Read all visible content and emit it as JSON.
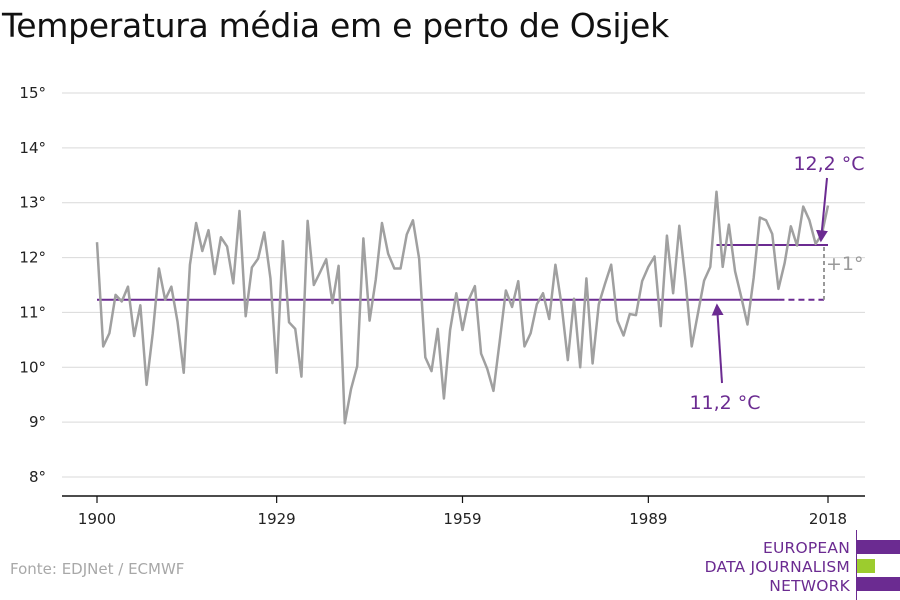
{
  "title": "Temperatura média em e perto de Osijek",
  "source": "Fonte: EDJNet / ECMWF",
  "logo": {
    "lines": [
      "EUROPEAN",
      "DATA JOURNALISM",
      "NETWORK"
    ],
    "colors": {
      "purple": "#6b2b91",
      "green": "#9ccc2e"
    }
  },
  "colors": {
    "series": "#a0a0a0",
    "average": "#6b2b91",
    "grid": "#d9d9d9",
    "axis": "#111111"
  },
  "chart_data": {
    "type": "line",
    "title": "Temperatura média em e perto de Osijek",
    "xlabel": "",
    "ylabel": "",
    "ylim": [
      8,
      15
    ],
    "xlim": [
      1900,
      2018
    ],
    "x_ticks": [
      1900,
      1929,
      1959,
      1989,
      2018
    ],
    "x_tick_labels": [
      "1900",
      "1929",
      "1959",
      "1989",
      "2018"
    ],
    "y_ticks": [
      8,
      9,
      10,
      11,
      12,
      13,
      14,
      15
    ],
    "y_tick_labels": [
      "8°",
      "9°",
      "10°",
      "11°",
      "12°",
      "13°",
      "14°",
      "15°"
    ],
    "grid": true,
    "series": [
      {
        "x_start": 1900,
        "values": [
          12.28,
          10.38,
          10.62,
          11.32,
          11.2,
          11.47,
          10.57,
          11.13,
          9.68,
          10.62,
          11.8,
          11.23,
          11.47,
          10.83,
          9.9,
          11.87,
          12.63,
          12.12,
          12.5,
          11.7,
          12.37,
          12.2,
          11.53,
          12.85,
          10.93,
          11.82,
          11.98,
          12.46,
          11.62,
          9.9,
          12.3,
          10.82,
          10.7,
          9.83,
          12.67,
          11.5,
          11.73,
          11.97,
          11.17,
          11.85,
          8.98,
          9.6,
          10.02,
          12.35,
          10.85,
          11.6,
          12.63,
          12.07,
          11.8,
          11.8,
          12.42,
          12.68,
          11.98,
          10.18,
          9.93,
          10.7,
          9.43,
          10.68,
          11.35,
          10.68,
          11.23,
          11.48,
          10.25,
          9.97,
          9.57,
          10.47,
          11.4,
          11.1,
          11.57,
          10.38,
          10.62,
          11.15,
          11.35,
          10.88,
          11.87,
          11.13,
          10.13,
          11.25,
          10.0,
          11.62,
          10.07,
          11.15,
          11.52,
          11.87,
          10.85,
          10.58,
          10.97,
          10.95,
          11.57,
          11.83,
          12.02,
          10.75,
          12.4,
          11.35,
          12.58,
          11.57,
          10.38,
          10.98,
          11.58,
          11.83,
          13.2,
          11.83,
          12.6,
          11.75,
          11.28,
          10.78,
          11.63,
          12.73,
          12.68,
          12.43,
          11.43,
          11.9,
          12.57,
          12.22,
          12.93,
          12.68,
          12.25,
          12.42,
          12.95
        ]
      }
    ],
    "baseline_average": {
      "from": 1900,
      "to": 2018,
      "value": 11.23,
      "label": "11,2 °C"
    },
    "recent_average": {
      "from": 2000,
      "to": 2018,
      "value": 12.23,
      "label": "12,2 °C"
    },
    "difference_label": "+1°"
  }
}
